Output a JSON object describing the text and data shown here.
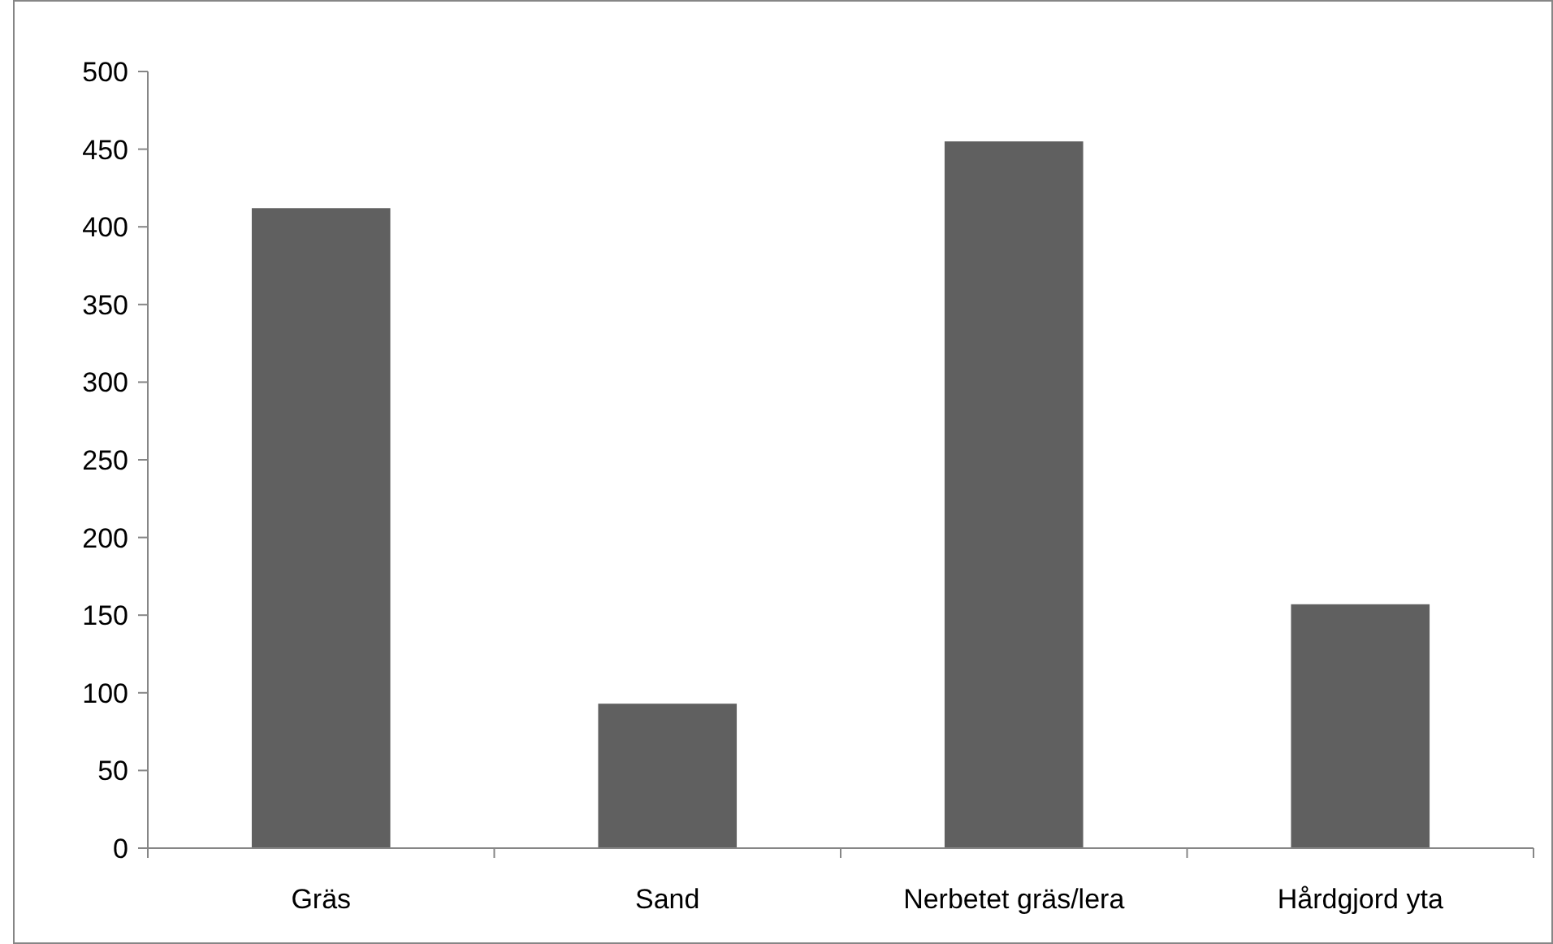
{
  "chart_data": {
    "type": "bar",
    "categories": [
      "Gräs",
      "Sand",
      "Nerbetet gräs/lera",
      "Hårdgjord yta"
    ],
    "values": [
      412,
      93,
      455,
      157
    ],
    "color": "#606060",
    "ylim": [
      0,
      500
    ],
    "yticks": [
      0,
      50,
      100,
      150,
      200,
      250,
      300,
      350,
      400,
      450,
      500
    ]
  }
}
